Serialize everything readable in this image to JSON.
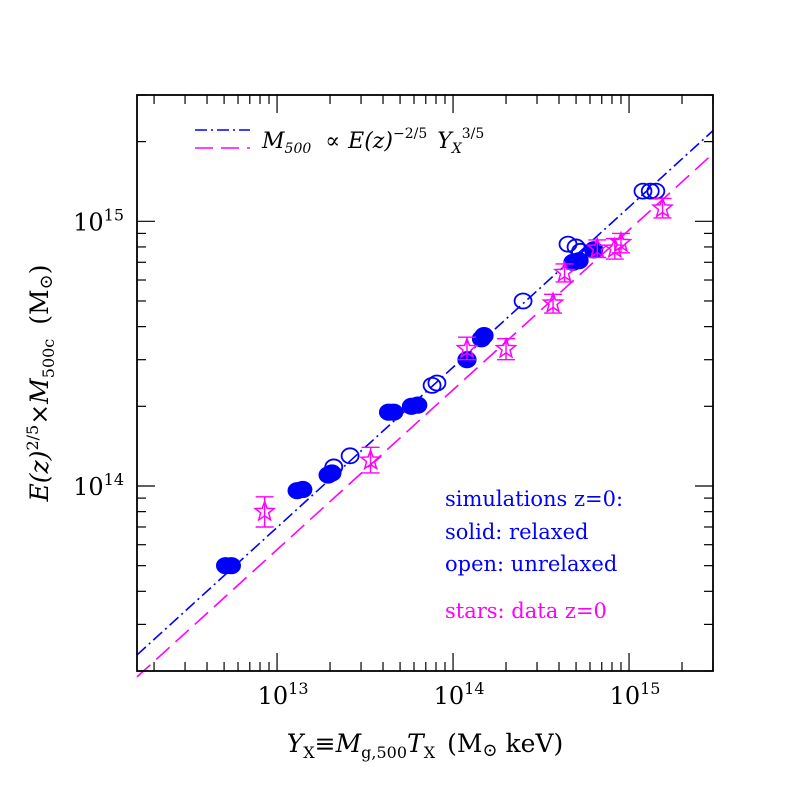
{
  "chart_data": {
    "type": "scatter",
    "x_scale": "log",
    "y_scale": "log",
    "xlim": [
      1600000000000.0,
      3000000000000000.0
    ],
    "ylim": [
      20000000000000.0,
      3000000000000000.0
    ],
    "x_tick_labels": [
      {
        "value": 10000000000000.0,
        "mantissa": "10",
        "exp": "13"
      },
      {
        "value": 100000000000000.0,
        "mantissa": "10",
        "exp": "14"
      },
      {
        "value": 1000000000000000.0,
        "mantissa": "10",
        "exp": "15"
      }
    ],
    "y_tick_labels": [
      {
        "value": 100000000000000.0,
        "mantissa": "10",
        "exp": "14"
      },
      {
        "value": 1000000000000000.0,
        "mantissa": "10",
        "exp": "15"
      }
    ],
    "xlabel": {
      "y": "Y",
      "y_sub": "X",
      "equiv": "≡",
      "m": "M",
      "m_sub": "g,500",
      "t": "T",
      "t_sub": "X",
      "units": "(M",
      "units_sym": "⊙",
      "units_tail": " keV)"
    },
    "ylabel": {
      "ez": "E(z)",
      "ez_exp": "2/5",
      "times": "×",
      "m": "M",
      "m_sub": "500c",
      "units": "(M",
      "units_sym": "⊙",
      "units_tail": ")"
    },
    "legend_fit": {
      "m": "M",
      "m_sub": "500",
      "prop": "∝",
      "ez": "E(z)",
      "ez_exp": "−2/5",
      "y": "Y",
      "y_sub": "X",
      "y_exp": "3/5"
    },
    "annotations": [
      {
        "text": "simulations z=0:",
        "color": "#0000ff"
      },
      {
        "text": "solid: relaxed",
        "color": "#0000ff"
      },
      {
        "text": "open: unrelaxed",
        "color": "#0000ff"
      },
      {
        "text": "stars: data z=0",
        "color": "#ff00ff"
      }
    ],
    "fit_lines": [
      {
        "name": "simulations fit",
        "color": "#0000ff",
        "style": "dash-dot",
        "points": [
          [
            1600000000000.0,
            23000000000000.0
          ],
          [
            3000000000000000.0,
            2200000000000000.0
          ]
        ]
      },
      {
        "name": "data fit",
        "color": "#ff00ff",
        "style": "long-dash",
        "points": [
          [
            1600000000000.0,
            19000000000000.0
          ],
          [
            3000000000000000.0,
            1800000000000000.0
          ]
        ]
      }
    ],
    "series": [
      {
        "name": "solid: relaxed",
        "marker": "filled-circle",
        "color": "#0000ff",
        "points": [
          [
            5100000000000.0,
            50000000000000.0
          ],
          [
            5500000000000.0,
            50000000000000.0
          ],
          [
            13000000000000.0,
            96000000000000.0
          ],
          [
            14000000000000.0,
            97000000000000.0
          ],
          [
            19500000000000.0,
            110000000000000.0
          ],
          [
            20500000000000.0,
            112000000000000.0
          ],
          [
            43000000000000.0,
            190000000000000.0
          ],
          [
            46000000000000.0,
            190000000000000.0
          ],
          [
            58000000000000.0,
            200000000000000.0
          ],
          [
            63000000000000.0,
            202000000000000.0
          ],
          [
            120000000000000.0,
            300000000000000.0
          ],
          [
            145000000000000.0,
            360000000000000.0
          ],
          [
            150000000000000.0,
            370000000000000.0
          ],
          [
            480000000000000.0,
            700000000000000.0
          ],
          [
            520000000000000.0,
            710000000000000.0
          ],
          [
            630000000000000.0,
            780000000000000.0
          ]
        ]
      },
      {
        "name": "open: unrelaxed",
        "marker": "open-circle",
        "color": "#0000ff",
        "points": [
          [
            21000000000000.0,
            118000000000000.0
          ],
          [
            26000000000000.0,
            130000000000000.0
          ],
          [
            76000000000000.0,
            240000000000000.0
          ],
          [
            81000000000000.0,
            245000000000000.0
          ],
          [
            250000000000000.0,
            500000000000000.0
          ],
          [
            450000000000000.0,
            820000000000000.0
          ],
          [
            500000000000000.0,
            800000000000000.0
          ],
          [
            530000000000000.0,
            770000000000000.0
          ],
          [
            1200000000000000.0,
            1300000000000000.0
          ],
          [
            1320000000000000.0,
            1300000000000000.0
          ],
          [
            1420000000000000.0,
            1300000000000000.0
          ]
        ]
      },
      {
        "name": "stars: data z=0",
        "marker": "open-star",
        "color": "#ff00ff",
        "points": [
          {
            "x": 8500000000000.0,
            "y": 80000000000000.0,
            "ylo": 70000000000000.0,
            "yhi": 91000000000000.0
          },
          {
            "x": 34000000000000.0,
            "y": 125000000000000.0,
            "ylo": 112000000000000.0,
            "yhi": 140000000000000.0
          },
          {
            "x": 120000000000000.0,
            "y": 330000000000000.0,
            "ylo": 300000000000000.0,
            "yhi": 365000000000000.0
          },
          {
            "x": 200000000000000.0,
            "y": 330000000000000.0,
            "ylo": 300000000000000.0,
            "yhi": 360000000000000.0
          },
          {
            "x": 370000000000000.0,
            "y": 490000000000000.0,
            "ylo": 450000000000000.0,
            "yhi": 530000000000000.0
          },
          {
            "x": 430000000000000.0,
            "y": 640000000000000.0,
            "ylo": 590000000000000.0,
            "yhi": 690000000000000.0
          },
          {
            "x": 660000000000000.0,
            "y": 790000000000000.0,
            "ylo": 730000000000000.0,
            "yhi": 850000000000000.0
          },
          {
            "x": 830000000000000.0,
            "y": 790000000000000.0,
            "ylo": 720000000000000.0,
            "yhi": 860000000000000.0
          },
          {
            "x": 900000000000000.0,
            "y": 830000000000000.0,
            "ylo": 760000000000000.0,
            "yhi": 900000000000000.0
          },
          {
            "x": 1550000000000000.0,
            "y": 1120000000000000.0,
            "ylo": 1030000000000000.0,
            "yhi": 1220000000000000.0
          }
        ]
      }
    ],
    "grid": false,
    "legend_placement": "top-left"
  }
}
